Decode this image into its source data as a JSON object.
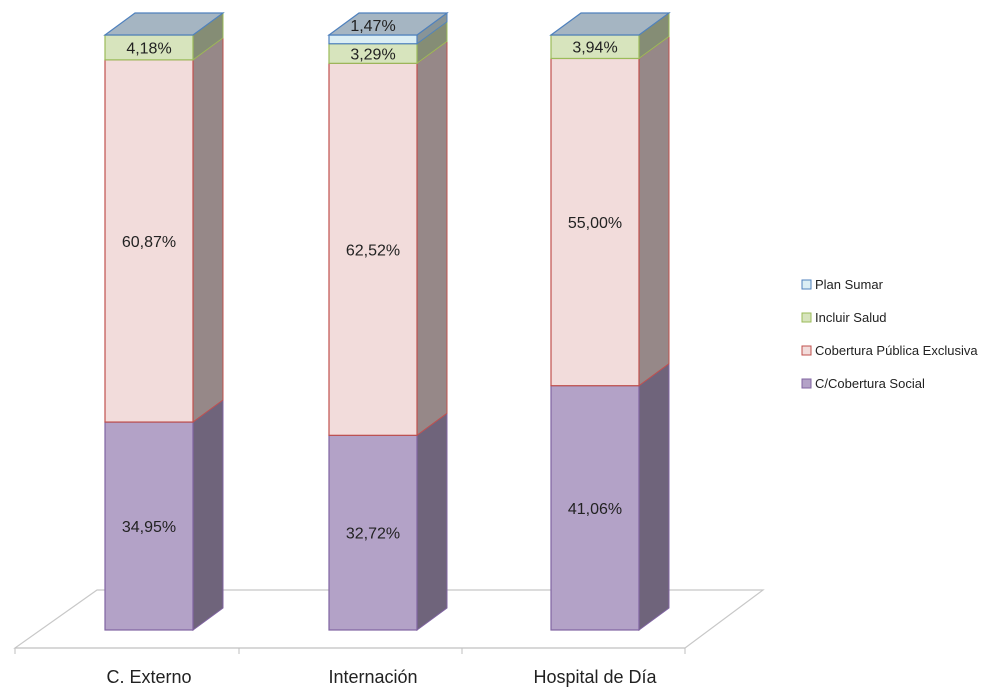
{
  "chart_data": {
    "type": "bar",
    "stacked": true,
    "three_d": true,
    "normalized_percent": true,
    "categories": [
      "C. Externo",
      "Internación",
      "Hospital de Día"
    ],
    "series": [
      {
        "name": "C/Cobertura Social",
        "values": [
          34.95,
          32.72,
          41.06
        ],
        "labels": [
          "34,95%",
          "32,72%",
          "41,06%"
        ],
        "color": "#b3a2c7",
        "border": "#8064a2"
      },
      {
        "name": "Cobertura Pública Exclusiva",
        "values": [
          60.87,
          62.52,
          55.0
        ],
        "labels": [
          "60,87%",
          "62,52%",
          "55,00%"
        ],
        "color": "#f2dcdb",
        "border": "#c0504d"
      },
      {
        "name": "Incluir Salud",
        "values": [
          4.18,
          3.29,
          3.94
        ],
        "labels": [
          "4,18%",
          "3,29%",
          "3,94%"
        ],
        "color": "#d7e4bd",
        "border": "#9bbb59"
      },
      {
        "name": "Plan Sumar",
        "values": [
          0,
          1.47,
          0
        ],
        "labels": [
          "",
          "1,47%",
          ""
        ],
        "color": "#dbeef4",
        "border": "#4f81bd"
      }
    ],
    "legend": {
      "position": "right",
      "order": [
        "Plan Sumar",
        "Incluir Salud",
        "Cobertura Pública Exclusiva",
        "C/Cobertura Social"
      ]
    },
    "ylim": [
      0,
      100
    ],
    "grid": false,
    "title": "",
    "xlabel": "",
    "ylabel": ""
  }
}
